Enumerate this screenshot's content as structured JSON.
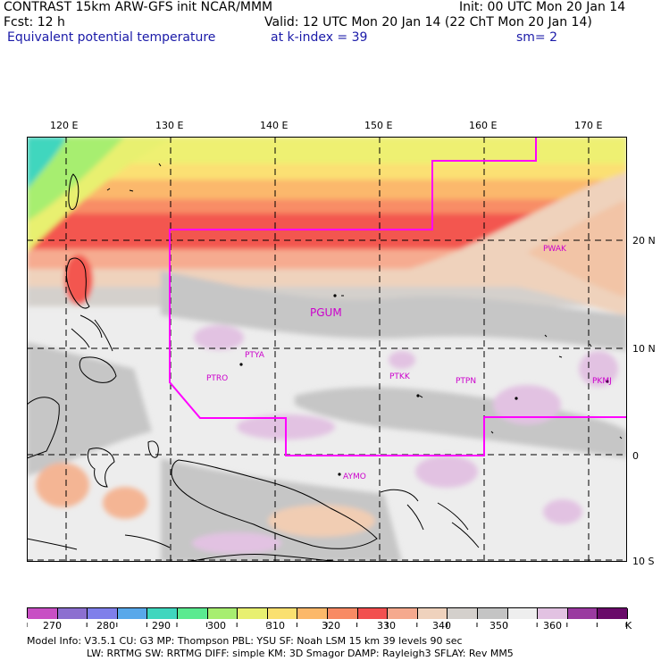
{
  "header": {
    "left_line1": "CONTRAST 15km ARW-GFS init    NCAR/MMM",
    "left_line2": "Fcst:   12 h",
    "left_line3": "Equivalent potential temperature",
    "right_line1": "Init: 00 UTC Mon 20 Jan 14",
    "right_line2": "Valid: 12 UTC Mon 20 Jan 14 (22 ChT Mon 20 Jan 14)",
    "kindex_text": "at k-index =   39",
    "sm_text": "sm= 2"
  },
  "map": {
    "lon_labels": [
      "120 E",
      "130 E",
      "140 E",
      "150 E",
      "160 E",
      "170 E"
    ],
    "lat_labels": [
      "20 N",
      "10 N",
      "0",
      "10 S"
    ],
    "stations": [
      "PGUM",
      "PTYA",
      "PTRO",
      "PTKK",
      "PTPN",
      "PKMJ",
      "PWAK",
      "AYMO"
    ],
    "colors": {
      "border": "#ff00ff",
      "station_label": "#cc00cc",
      "grid": "#000000",
      "coast": "#000000"
    }
  },
  "colorbar": {
    "unit": "K",
    "labels": [
      "270",
      "280",
      "290",
      "300",
      "310",
      "320",
      "330",
      "340",
      "350",
      "360"
    ],
    "colors": [
      "#c84fc4",
      "#8c6fd0",
      "#7f7fea",
      "#58a8ea",
      "#3fd6be",
      "#5aea90",
      "#a7ee70",
      "#e8f070",
      "#fae070",
      "#fcb86a",
      "#f88a64",
      "#f2504f",
      "#f5a98e",
      "#efd2bd",
      "#d4d0cc",
      "#c4c4c4",
      "#eeeeee",
      "#e2c2e2",
      "#9a3aa0",
      "#6a0a6a"
    ]
  },
  "model_info": {
    "line1": "Model Info: V3.5.1     CU: G3      MP: Thompson    PBL: YSU      SF: Noah LSM     15 km    39 levels    90 sec",
    "line2": "LW: RRTMG     SW: RRTMG   DIFF: simple KM: 3D Smagor DAMP: Rayleigh3   SFLAY: Rev MM5"
  }
}
